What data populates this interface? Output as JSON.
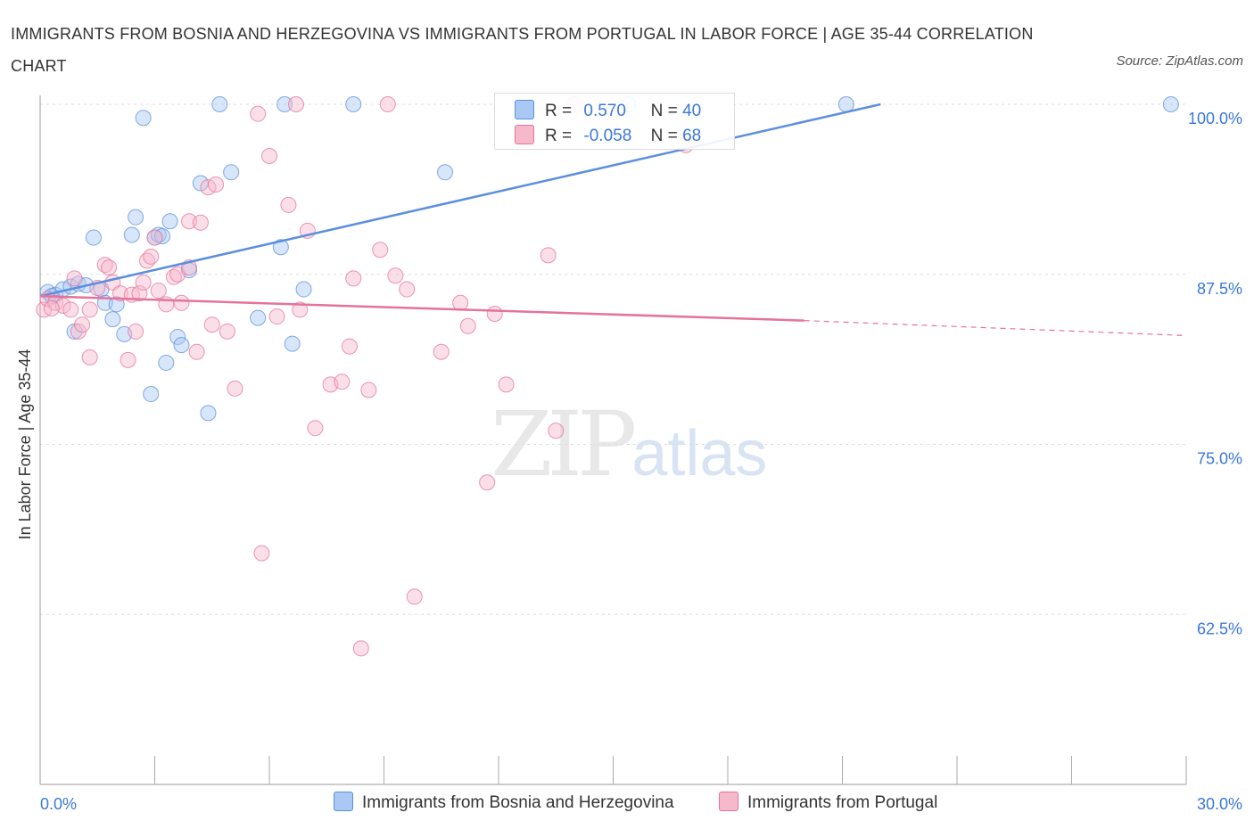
{
  "title": "IMMIGRANTS FROM BOSNIA AND HERZEGOVINA VS IMMIGRANTS FROM PORTUGAL IN LABOR FORCE | AGE 35-44 CORRELATION CHART",
  "source": "Source: ZipAtlas.com",
  "watermark": {
    "zip": "ZIP",
    "atlas": "atlas"
  },
  "legend": {
    "rows": [
      {
        "r_label": "R =",
        "r_value": "0.570",
        "n_label": "N =",
        "n_value": "40",
        "color": "#a9c8f3"
      },
      {
        "r_label": "R =",
        "r_value": "-0.058",
        "n_label": "N =",
        "n_value": "68",
        "color": "#f6b8cb"
      }
    ]
  },
  "chart_data": {
    "type": "scatter",
    "title": "IMMIGRANTS FROM BOSNIA AND HERZEGOVINA VS IMMIGRANTS FROM PORTUGAL IN LABOR FORCE | AGE 35-44 CORRELATION CHART",
    "xlabel": "",
    "ylabel": "In Labor Force | Age 35-44",
    "xlim": [
      0,
      30
    ],
    "ylim": [
      50,
      100
    ],
    "x_tick_labels": [
      "0.0%",
      "30.0%"
    ],
    "y_ticks": [
      62.5,
      75.0,
      87.5,
      100.0
    ],
    "y_tick_labels": [
      "62.5%",
      "75.0%",
      "87.5%",
      "100.0%"
    ],
    "grid": true,
    "legend_position": "bottom",
    "series": [
      {
        "name": "Immigrants from Bosnia and Herzegovina",
        "color": "#5b8fde",
        "fill": "#a9c8f3",
        "trend": {
          "x": [
            0,
            22
          ],
          "y": [
            85.9,
            100.0
          ]
        },
        "points": [
          [
            0.2,
            86.2
          ],
          [
            0.4,
            86.0
          ],
          [
            0.6,
            86.4
          ],
          [
            0.8,
            86.6
          ],
          [
            0.9,
            83.3
          ],
          [
            1.0,
            86.8
          ],
          [
            1.4,
            90.2
          ],
          [
            1.6,
            86.4
          ],
          [
            1.7,
            85.4
          ],
          [
            1.9,
            84.2
          ],
          [
            2.0,
            85.3
          ],
          [
            2.2,
            83.1
          ],
          [
            2.4,
            90.4
          ],
          [
            2.5,
            91.7
          ],
          [
            2.7,
            99.0
          ],
          [
            2.9,
            78.7
          ],
          [
            3.0,
            90.2
          ],
          [
            3.1,
            90.4
          ],
          [
            3.3,
            81.0
          ],
          [
            3.4,
            91.4
          ],
          [
            3.6,
            82.9
          ],
          [
            3.7,
            82.3
          ],
          [
            3.9,
            87.8
          ],
          [
            4.2,
            94.2
          ],
          [
            4.4,
            77.3
          ],
          [
            4.7,
            100.0
          ],
          [
            5.0,
            95.0
          ],
          [
            5.7,
            84.3
          ],
          [
            6.3,
            89.5
          ],
          [
            6.4,
            100.0
          ],
          [
            6.6,
            82.4
          ],
          [
            6.9,
            86.4
          ],
          [
            8.2,
            100.0
          ],
          [
            10.6,
            95.0
          ],
          [
            15.4,
            100.0
          ],
          [
            21.1,
            100.0
          ],
          [
            29.6,
            100.0
          ],
          [
            0.3,
            85.9
          ],
          [
            1.2,
            86.7
          ],
          [
            3.2,
            90.3
          ]
        ]
      },
      {
        "name": "Immigrants from Portugal",
        "color": "#e57399",
        "fill": "#f6b8cb",
        "trend": {
          "x": [
            0,
            20
          ],
          "y": [
            85.9,
            84.1
          ]
        },
        "trend_dashed": {
          "x": [
            20,
            30
          ],
          "y": [
            84.1,
            83.0
          ]
        },
        "points": [
          [
            0.1,
            84.9
          ],
          [
            0.2,
            85.7
          ],
          [
            0.4,
            85.4
          ],
          [
            0.6,
            85.2
          ],
          [
            0.8,
            84.9
          ],
          [
            0.9,
            87.2
          ],
          [
            1.0,
            83.3
          ],
          [
            1.1,
            83.8
          ],
          [
            1.3,
            81.4
          ],
          [
            1.5,
            86.5
          ],
          [
            1.7,
            88.2
          ],
          [
            1.8,
            88.0
          ],
          [
            1.9,
            86.9
          ],
          [
            2.1,
            86.1
          ],
          [
            2.3,
            81.2
          ],
          [
            2.4,
            86.0
          ],
          [
            2.5,
            83.3
          ],
          [
            2.6,
            86.1
          ],
          [
            2.7,
            86.9
          ],
          [
            2.8,
            88.5
          ],
          [
            2.9,
            88.8
          ],
          [
            3.0,
            90.2
          ],
          [
            3.1,
            86.3
          ],
          [
            3.3,
            85.3
          ],
          [
            3.5,
            87.3
          ],
          [
            3.6,
            87.5
          ],
          [
            3.7,
            85.4
          ],
          [
            3.9,
            88.0
          ],
          [
            3.9,
            91.4
          ],
          [
            4.1,
            81.8
          ],
          [
            4.2,
            91.3
          ],
          [
            4.4,
            93.9
          ],
          [
            4.5,
            83.8
          ],
          [
            4.6,
            94.1
          ],
          [
            4.9,
            83.3
          ],
          [
            5.1,
            79.1
          ],
          [
            5.7,
            99.3
          ],
          [
            5.8,
            67.0
          ],
          [
            6.0,
            96.2
          ],
          [
            6.2,
            84.4
          ],
          [
            6.5,
            92.6
          ],
          [
            6.7,
            100.0
          ],
          [
            6.8,
            84.9
          ],
          [
            7.0,
            90.7
          ],
          [
            7.2,
            76.2
          ],
          [
            7.6,
            79.4
          ],
          [
            7.9,
            79.6
          ],
          [
            8.1,
            82.2
          ],
          [
            8.2,
            87.2
          ],
          [
            8.4,
            60.0
          ],
          [
            8.6,
            79.0
          ],
          [
            8.9,
            89.3
          ],
          [
            9.1,
            100.0
          ],
          [
            9.3,
            87.4
          ],
          [
            9.6,
            86.4
          ],
          [
            9.8,
            63.8
          ],
          [
            10.5,
            81.8
          ],
          [
            11.0,
            85.4
          ],
          [
            11.2,
            83.7
          ],
          [
            11.7,
            72.2
          ],
          [
            11.9,
            84.6
          ],
          [
            12.2,
            79.4
          ],
          [
            13.3,
            88.9
          ],
          [
            13.5,
            76.0
          ],
          [
            14.0,
            100.0
          ],
          [
            16.9,
            97.0
          ],
          [
            0.3,
            85.0
          ],
          [
            1.3,
            84.9
          ]
        ]
      }
    ]
  },
  "bottom_legend": [
    {
      "label": "Immigrants from Bosnia and Herzegovina",
      "color": "#a9c8f3"
    },
    {
      "label": "Immigrants from Portugal",
      "color": "#f6b8cb"
    }
  ]
}
